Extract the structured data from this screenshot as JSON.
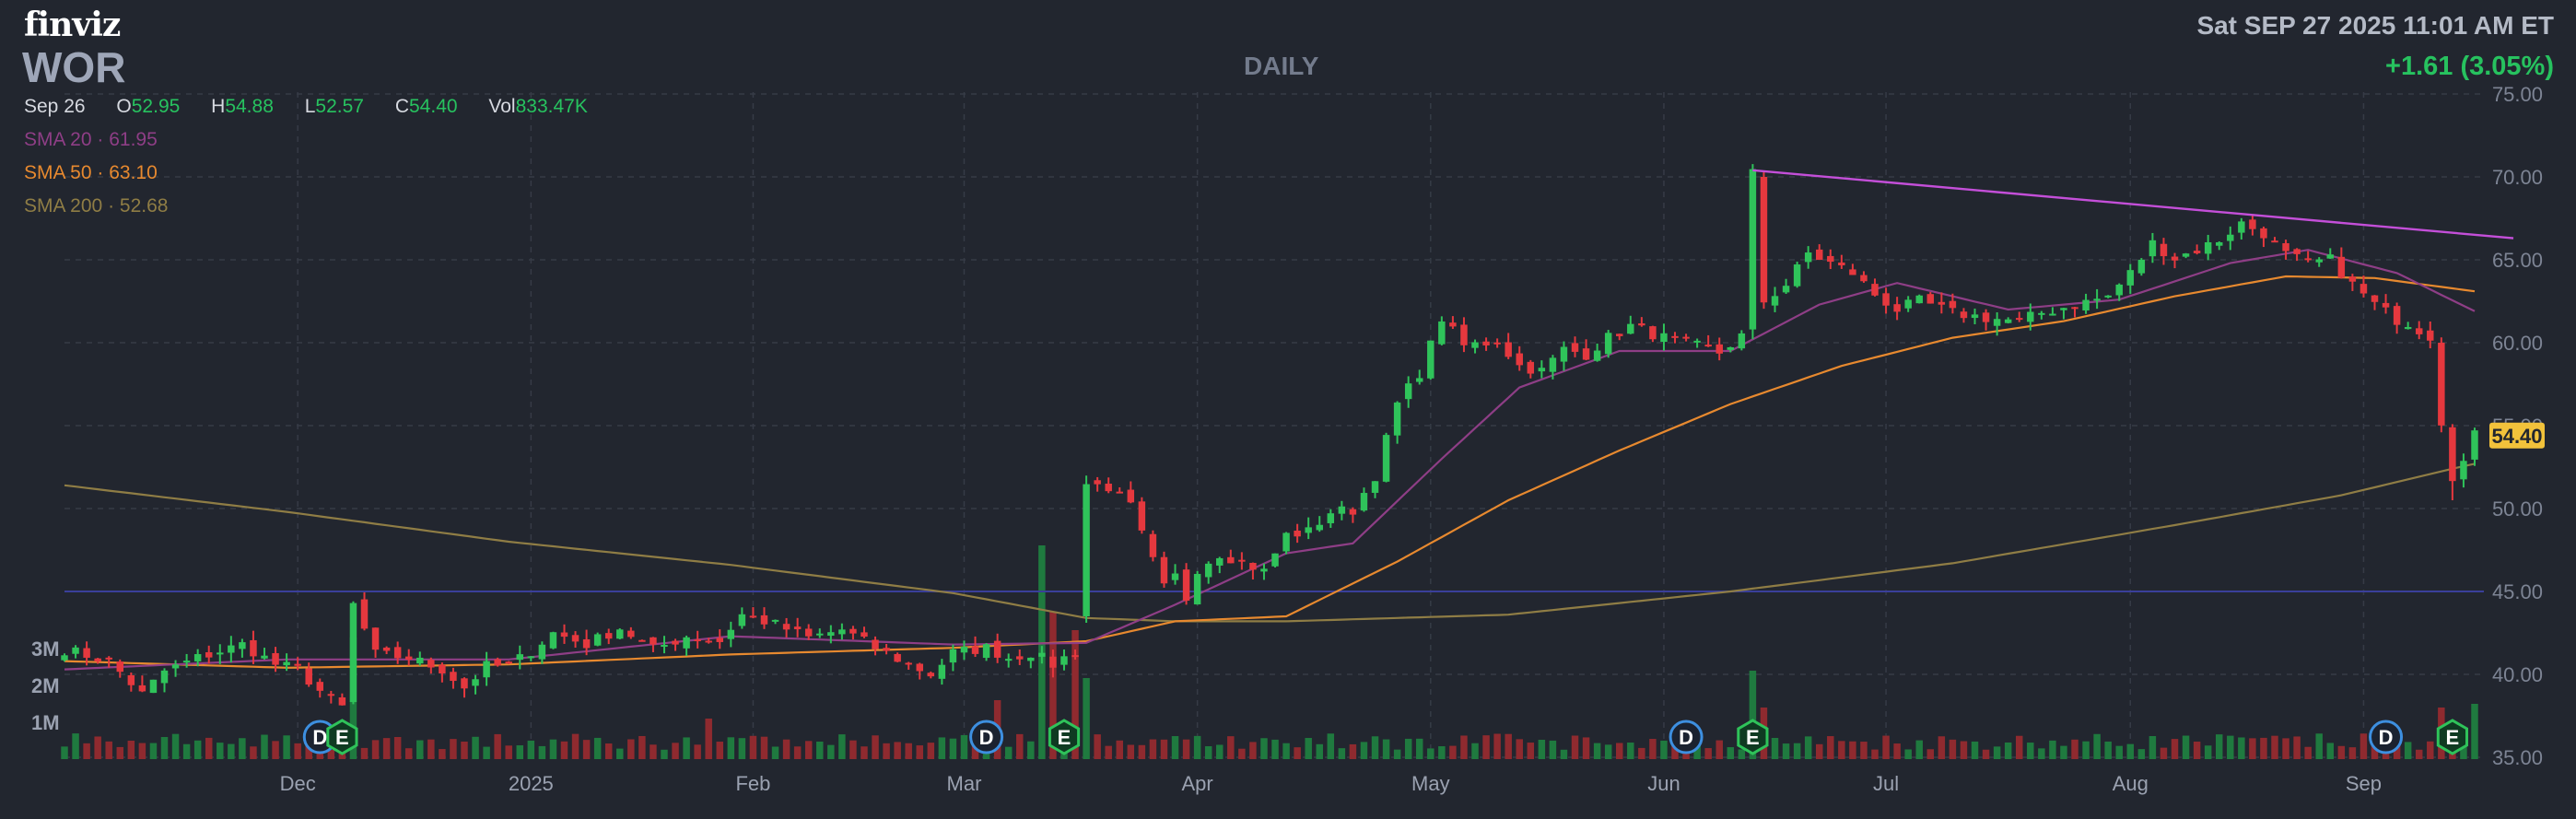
{
  "header": {
    "logo": "finviz",
    "ticker": "WOR",
    "period": "DAILY",
    "datetime": "Sat SEP 27 2025 11:01 AM ET",
    "change": "+1.61 (3.05%)"
  },
  "ohlc": {
    "date": "Sep 26",
    "open_label": "O",
    "open": "52.95",
    "high_label": "H",
    "high": "54.88",
    "low_label": "L",
    "low": "52.57",
    "close_label": "C",
    "close": "54.40",
    "vol_label": "Vol",
    "vol": "833.47K"
  },
  "indicators": {
    "sma20": {
      "label": "SMA 20",
      "value": "61.95"
    },
    "sma50": {
      "label": "SMA 50",
      "value": "63.10"
    },
    "sma200": {
      "label": "SMA 200",
      "value": "52.68"
    }
  },
  "colors": {
    "background": "#22262f",
    "up": "#2fc35a",
    "down": "#e5383e",
    "sma20": "#8e3e86",
    "sma50": "#e7892f",
    "sma200": "#8f7d45",
    "trendline": "#c44fd9",
    "hline": "#3a3f9a",
    "grid": "#363b46",
    "last_price_bg": "#f2c23b"
  },
  "chart_data": {
    "type": "candlestick",
    "ylim": [
      35,
      75
    ],
    "y_ticks": [
      "35.00",
      "40.00",
      "45.00",
      "50.00",
      "55.00",
      "60.00",
      "65.00",
      "70.00",
      "75.00"
    ],
    "x_ticks": [
      {
        "label": "Dec",
        "day": 21
      },
      {
        "label": "2025",
        "day": 42
      },
      {
        "label": "Feb",
        "day": 62
      },
      {
        "label": "Mar",
        "day": 81
      },
      {
        "label": "Apr",
        "day": 102
      },
      {
        "label": "May",
        "day": 123
      },
      {
        "label": "Jun",
        "day": 144
      },
      {
        "label": "Jul",
        "day": 164
      },
      {
        "label": "Aug",
        "day": 186
      },
      {
        "label": "Sep",
        "day": 207
      }
    ],
    "volume_ticks": [
      "1M",
      "2M",
      "3M"
    ],
    "last_price": "54.40",
    "horizontal_line": 45,
    "trendline": [
      {
        "day": 152,
        "price": 70.4
      },
      {
        "day": 218,
        "price": 66.3
      }
    ],
    "events": [
      {
        "type": "D",
        "day": 23
      },
      {
        "type": "E",
        "day": 25
      },
      {
        "type": "D",
        "day": 83
      },
      {
        "type": "E",
        "day": 90
      },
      {
        "type": "D",
        "day": 146
      },
      {
        "type": "E",
        "day": 152
      },
      {
        "type": "D",
        "day": 209
      },
      {
        "type": "E",
        "day": 215
      }
    ],
    "close_anchors": [
      [
        0,
        41.5
      ],
      [
        4,
        40.8
      ],
      [
        7,
        38.8
      ],
      [
        9,
        40.2
      ],
      [
        12,
        41.0
      ],
      [
        16,
        41.8
      ],
      [
        19,
        40.6
      ],
      [
        21,
        40.3
      ],
      [
        23,
        39.0
      ],
      [
        25,
        38.0
      ],
      [
        26,
        44.2
      ],
      [
        28,
        41.2
      ],
      [
        31,
        41.0
      ],
      [
        34,
        40.3
      ],
      [
        36,
        39.2
      ],
      [
        38,
        40.5
      ],
      [
        40,
        40.5
      ],
      [
        42,
        41.4
      ],
      [
        44,
        42.5
      ],
      [
        47,
        41.8
      ],
      [
        50,
        42.8
      ],
      [
        53,
        41.5
      ],
      [
        56,
        42.3
      ],
      [
        59,
        42.0
      ],
      [
        61,
        43.6
      ],
      [
        64,
        43.0
      ],
      [
        67,
        42.2
      ],
      [
        70,
        42.7
      ],
      [
        73,
        41.6
      ],
      [
        76,
        40.6
      ],
      [
        78,
        40.0
      ],
      [
        80,
        41.3
      ],
      [
        83,
        41.6
      ],
      [
        85,
        41.0
      ],
      [
        87,
        41.3
      ],
      [
        89,
        40.6
      ],
      [
        91,
        41.4
      ],
      [
        92,
        51.5
      ],
      [
        94,
        51.3
      ],
      [
        96,
        50.1
      ],
      [
        97,
        48.4
      ],
      [
        99,
        45.2
      ],
      [
        100,
        45.9
      ],
      [
        101,
        44.6
      ],
      [
        102,
        46.4
      ],
      [
        104,
        47.3
      ],
      [
        106,
        46.8
      ],
      [
        108,
        46.2
      ],
      [
        110,
        48.4
      ],
      [
        112,
        48.6
      ],
      [
        114,
        49.8
      ],
      [
        116,
        49.9
      ],
      [
        118,
        52.0
      ],
      [
        120,
        56.3
      ],
      [
        122,
        58.2
      ],
      [
        124,
        61.5
      ],
      [
        126,
        59.8
      ],
      [
        129,
        60.1
      ],
      [
        131,
        58.6
      ],
      [
        133,
        58.3
      ],
      [
        135,
        59.6
      ],
      [
        137,
        59.3
      ],
      [
        139,
        60.3
      ],
      [
        141,
        61.0
      ],
      [
        144,
        60.3
      ],
      [
        147,
        59.8
      ],
      [
        149,
        59.4
      ],
      [
        151,
        60.4
      ],
      [
        152,
        70.2
      ],
      [
        153,
        62.5
      ],
      [
        155,
        63.5
      ],
      [
        157,
        65.4
      ],
      [
        159,
        64.8
      ],
      [
        161,
        64.2
      ],
      [
        163,
        62.9
      ],
      [
        165,
        62.0
      ],
      [
        167,
        62.5
      ],
      [
        170,
        61.8
      ],
      [
        173,
        61.5
      ],
      [
        176,
        61.3
      ],
      [
        178,
        61.8
      ],
      [
        181,
        62.3
      ],
      [
        184,
        62.8
      ],
      [
        186,
        64.2
      ],
      [
        188,
        66.0
      ],
      [
        190,
        65.1
      ],
      [
        192,
        65.6
      ],
      [
        194,
        66.2
      ],
      [
        196,
        67.2
      ],
      [
        198,
        66.6
      ],
      [
        200,
        65.3
      ],
      [
        202,
        64.8
      ],
      [
        204,
        65.0
      ],
      [
        206,
        63.5
      ],
      [
        208,
        62.3
      ],
      [
        210,
        61.4
      ],
      [
        211,
        61.2
      ],
      [
        212,
        60.8
      ],
      [
        213,
        60.4
      ],
      [
        214,
        55.3
      ],
      [
        215,
        52.0
      ],
      [
        216,
        52.8
      ],
      [
        217,
        54.4
      ]
    ],
    "volume_spikes": [
      [
        26,
        3.3
      ],
      [
        58,
        1.1
      ],
      [
        84,
        1.6
      ],
      [
        88,
        5.8
      ],
      [
        89,
        4.0
      ],
      [
        91,
        3.5
      ],
      [
        92,
        2.2
      ],
      [
        152,
        2.4
      ],
      [
        153,
        1.4
      ],
      [
        214,
        1.4
      ],
      [
        217,
        1.5
      ]
    ],
    "sma200_anchors": [
      [
        0,
        51.4
      ],
      [
        20,
        49.8
      ],
      [
        40,
        48.0
      ],
      [
        60,
        46.6
      ],
      [
        80,
        44.9
      ],
      [
        92,
        43.4
      ],
      [
        100,
        43.2
      ],
      [
        110,
        43.2
      ],
      [
        130,
        43.6
      ],
      [
        150,
        45.0
      ],
      [
        170,
        46.7
      ],
      [
        190,
        49.0
      ],
      [
        205,
        50.8
      ],
      [
        215,
        52.4
      ],
      [
        217,
        52.7
      ]
    ],
    "sma50_anchors": [
      [
        0,
        40.8
      ],
      [
        20,
        40.4
      ],
      [
        40,
        40.6
      ],
      [
        60,
        41.2
      ],
      [
        80,
        41.6
      ],
      [
        92,
        42.0
      ],
      [
        100,
        43.2
      ],
      [
        110,
        43.5
      ],
      [
        120,
        46.8
      ],
      [
        130,
        50.5
      ],
      [
        140,
        53.5
      ],
      [
        150,
        56.3
      ],
      [
        160,
        58.6
      ],
      [
        170,
        60.3
      ],
      [
        180,
        61.3
      ],
      [
        190,
        62.8
      ],
      [
        200,
        64.0
      ],
      [
        208,
        63.9
      ],
      [
        217,
        63.1
      ]
    ],
    "sma20_anchors": [
      [
        0,
        40.3
      ],
      [
        20,
        40.9
      ],
      [
        40,
        40.9
      ],
      [
        60,
        42.3
      ],
      [
        80,
        41.8
      ],
      [
        92,
        41.9
      ],
      [
        100,
        44.2
      ],
      [
        110,
        47.3
      ],
      [
        116,
        47.9
      ],
      [
        124,
        53.0
      ],
      [
        131,
        57.3
      ],
      [
        140,
        59.5
      ],
      [
        150,
        59.5
      ],
      [
        158,
        62.3
      ],
      [
        165,
        63.6
      ],
      [
        175,
        62.0
      ],
      [
        185,
        62.6
      ],
      [
        195,
        64.8
      ],
      [
        202,
        65.6
      ],
      [
        210,
        64.2
      ],
      [
        217,
        61.9
      ]
    ]
  }
}
